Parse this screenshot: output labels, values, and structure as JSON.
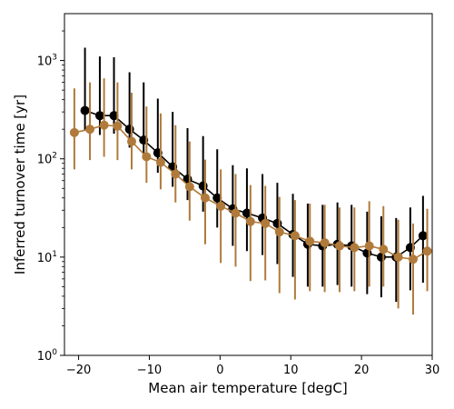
{
  "chart_data": {
    "type": "scatter",
    "xlabel": "Mean air temperature [degC]",
    "ylabel": "Inferred turnover time [yr]",
    "xlim": [
      -22,
      30
    ],
    "ylim": [
      1,
      3000
    ],
    "yscale": "log",
    "x_ticks": [
      -20,
      -10,
      0,
      10,
      20,
      30
    ],
    "x_tick_labels": [
      "−20",
      "−10",
      "0",
      "10",
      "20",
      "30"
    ],
    "y_ticks": [
      1,
      10,
      100,
      1000
    ],
    "y_tick_labels": [
      "10",
      "10",
      "10",
      "10"
    ],
    "y_tick_exponents": [
      "0",
      "1",
      "2",
      "3"
    ],
    "grid": false,
    "legend": "none",
    "series": [
      {
        "color": "#000000",
        "points": [
          {
            "x": -19.1,
            "y": 310,
            "lo": 195,
            "hi": 1350
          },
          {
            "x": -17.0,
            "y": 275,
            "lo": 175,
            "hi": 1100
          },
          {
            "x": -15.0,
            "y": 275,
            "lo": 180,
            "hi": 1080
          },
          {
            "x": -12.8,
            "y": 200,
            "lo": 130,
            "hi": 760
          },
          {
            "x": -10.8,
            "y": 155,
            "lo": 100,
            "hi": 600
          },
          {
            "x": -8.8,
            "y": 115,
            "lo": 72,
            "hi": 410
          },
          {
            "x": -6.7,
            "y": 83,
            "lo": 52,
            "hi": 300
          },
          {
            "x": -4.6,
            "y": 62,
            "lo": 38,
            "hi": 205
          },
          {
            "x": -2.4,
            "y": 53,
            "lo": 29,
            "hi": 170
          },
          {
            "x": -0.4,
            "y": 40,
            "lo": 20,
            "hi": 125
          },
          {
            "x": 1.8,
            "y": 31,
            "lo": 13,
            "hi": 86
          },
          {
            "x": 3.8,
            "y": 28,
            "lo": 11.5,
            "hi": 80
          },
          {
            "x": 6.0,
            "y": 25,
            "lo": 10.5,
            "hi": 70
          },
          {
            "x": 8.1,
            "y": 22,
            "lo": 8.5,
            "hi": 57
          },
          {
            "x": 10.3,
            "y": 17,
            "lo": 6.3,
            "hi": 44
          },
          {
            "x": 12.4,
            "y": 13.5,
            "lo": 5.0,
            "hi": 35
          },
          {
            "x": 14.5,
            "y": 13,
            "lo": 5.0,
            "hi": 34
          },
          {
            "x": 16.6,
            "y": 13.5,
            "lo": 5.2,
            "hi": 36
          },
          {
            "x": 18.6,
            "y": 13,
            "lo": 5.0,
            "hi": 34
          },
          {
            "x": 20.8,
            "y": 11,
            "lo": 4.2,
            "hi": 29
          },
          {
            "x": 22.8,
            "y": 10,
            "lo": 3.9,
            "hi": 26
          },
          {
            "x": 24.9,
            "y": 10,
            "lo": 3.5,
            "hi": 25
          },
          {
            "x": 26.9,
            "y": 12.5,
            "lo": 4.6,
            "hi": 32
          },
          {
            "x": 28.7,
            "y": 16.5,
            "lo": 5.5,
            "hi": 42
          }
        ]
      },
      {
        "color": "#b07a3b",
        "points": [
          {
            "x": -20.6,
            "y": 185,
            "lo": 78,
            "hi": 520
          },
          {
            "x": -18.4,
            "y": 200,
            "lo": 97,
            "hi": 600
          },
          {
            "x": -16.4,
            "y": 220,
            "lo": 105,
            "hi": 660
          },
          {
            "x": -14.5,
            "y": 215,
            "lo": 97,
            "hi": 600
          },
          {
            "x": -12.5,
            "y": 150,
            "lo": 78,
            "hi": 470
          },
          {
            "x": -10.4,
            "y": 105,
            "lo": 57,
            "hi": 340
          },
          {
            "x": -8.4,
            "y": 92,
            "lo": 49,
            "hi": 290
          },
          {
            "x": -6.3,
            "y": 70,
            "lo": 36,
            "hi": 220
          },
          {
            "x": -4.3,
            "y": 52,
            "lo": 23.5,
            "hi": 150
          },
          {
            "x": -2.1,
            "y": 40,
            "lo": 13.5,
            "hi": 98
          },
          {
            "x": 0.1,
            "y": 33,
            "lo": 8.7,
            "hi": 78
          },
          {
            "x": 2.2,
            "y": 28,
            "lo": 8.0,
            "hi": 70
          },
          {
            "x": 4.3,
            "y": 23,
            "lo": 5.7,
            "hi": 54
          },
          {
            "x": 6.4,
            "y": 22,
            "lo": 5.8,
            "hi": 53
          },
          {
            "x": 8.4,
            "y": 18,
            "lo": 4.3,
            "hi": 41
          },
          {
            "x": 10.6,
            "y": 16.5,
            "lo": 3.7,
            "hi": 38
          },
          {
            "x": 12.7,
            "y": 14.5,
            "lo": 4.5,
            "hi": 35
          },
          {
            "x": 14.8,
            "y": 14,
            "lo": 4.4,
            "hi": 34
          },
          {
            "x": 16.9,
            "y": 13,
            "lo": 4.4,
            "hi": 32
          },
          {
            "x": 19.0,
            "y": 12.5,
            "lo": 4.5,
            "hi": 32
          },
          {
            "x": 21.1,
            "y": 13,
            "lo": 5.0,
            "hi": 37
          },
          {
            "x": 23.1,
            "y": 12,
            "lo": 5.0,
            "hi": 33
          },
          {
            "x": 25.2,
            "y": 10,
            "lo": 3.0,
            "hi": 24
          },
          {
            "x": 27.3,
            "y": 9.5,
            "lo": 2.6,
            "hi": 22
          },
          {
            "x": 29.3,
            "y": 11.5,
            "lo": 4.5,
            "hi": 31
          }
        ]
      }
    ]
  }
}
